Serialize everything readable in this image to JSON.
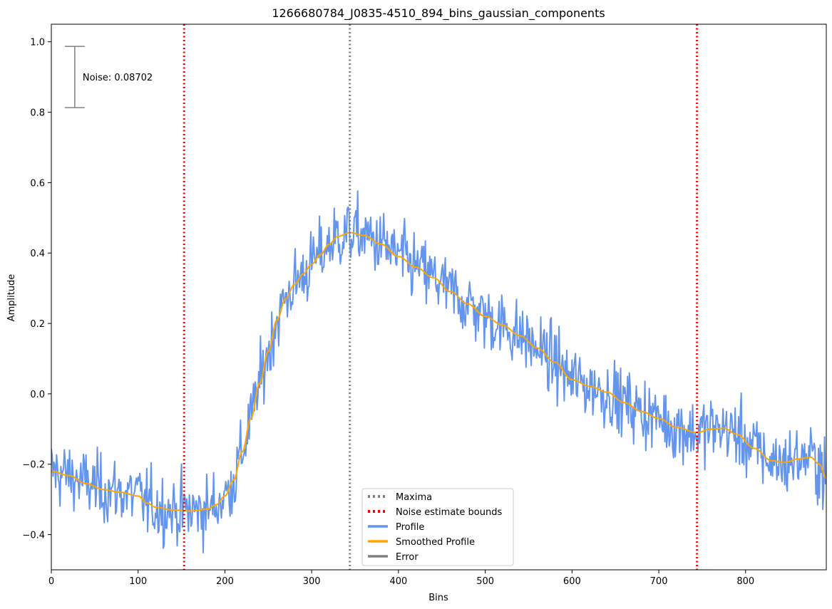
{
  "chart_data": {
    "type": "line",
    "title": "1266680784_J0835-4510_894_bins_gaussian_components",
    "xlabel": "Bins",
    "ylabel": "Amplitude",
    "xlim": [
      0,
      893
    ],
    "ylim": [
      -0.5,
      1.05
    ],
    "x_ticks": [
      0,
      100,
      200,
      300,
      400,
      500,
      600,
      700,
      800
    ],
    "y_ticks": [
      -0.4,
      -0.2,
      0.0,
      0.2,
      0.4,
      0.6,
      0.8,
      1.0
    ],
    "y_tick_labels": [
      "−0.4",
      "−0.2",
      "0.0",
      "0.2",
      "0.4",
      "0.6",
      "0.8",
      "1.0"
    ],
    "grid": false,
    "legend_position": "bottom-center",
    "colors": {
      "profile": "#6495ed",
      "smoothed": "#ffa500",
      "maxima": "#808080",
      "noise_bounds": "#ff0000",
      "error": "#808080"
    },
    "noise_label": "Noise: 0.08702",
    "error_bar": {
      "x": 27,
      "y_low": 0.813,
      "y_high": 0.987
    },
    "maxima": [
      344
    ],
    "noise_bounds": [
      153,
      744
    ],
    "profile_noise_sigma": 0.087,
    "smoothed_profile": [
      [
        0,
        -0.22
      ],
      [
        20,
        -0.232
      ],
      [
        40,
        -0.255
      ],
      [
        60,
        -0.272
      ],
      [
        80,
        -0.28
      ],
      [
        100,
        -0.29
      ],
      [
        110,
        -0.31
      ],
      [
        120,
        -0.322
      ],
      [
        140,
        -0.33
      ],
      [
        160,
        -0.333
      ],
      [
        180,
        -0.328
      ],
      [
        190,
        -0.315
      ],
      [
        200,
        -0.29
      ],
      [
        210,
        -0.245
      ],
      [
        220,
        -0.165
      ],
      [
        230,
        -0.07
      ],
      [
        240,
        0.03
      ],
      [
        250,
        0.12
      ],
      [
        260,
        0.21
      ],
      [
        270,
        0.27
      ],
      [
        280,
        0.31
      ],
      [
        290,
        0.34
      ],
      [
        300,
        0.368
      ],
      [
        310,
        0.395
      ],
      [
        320,
        0.425
      ],
      [
        330,
        0.447
      ],
      [
        344,
        0.458
      ],
      [
        360,
        0.45
      ],
      [
        380,
        0.425
      ],
      [
        400,
        0.39
      ],
      [
        420,
        0.36
      ],
      [
        440,
        0.33
      ],
      [
        460,
        0.29
      ],
      [
        480,
        0.255
      ],
      [
        500,
        0.22
      ],
      [
        520,
        0.195
      ],
      [
        540,
        0.165
      ],
      [
        560,
        0.13
      ],
      [
        580,
        0.09
      ],
      [
        600,
        0.04
      ],
      [
        620,
        0.022
      ],
      [
        640,
        0.005
      ],
      [
        660,
        -0.025
      ],
      [
        680,
        -0.05
      ],
      [
        700,
        -0.07
      ],
      [
        720,
        -0.095
      ],
      [
        744,
        -0.11
      ],
      [
        760,
        -0.1
      ],
      [
        775,
        -0.098
      ],
      [
        790,
        -0.115
      ],
      [
        810,
        -0.155
      ],
      [
        830,
        -0.19
      ],
      [
        845,
        -0.195
      ],
      [
        860,
        -0.185
      ],
      [
        875,
        -0.18
      ],
      [
        885,
        -0.2
      ],
      [
        893,
        -0.24
      ]
    ],
    "legend": [
      {
        "label": "Maxima",
        "style": "dotted",
        "color": "#808080"
      },
      {
        "label": "Noise estimate bounds",
        "style": "dotted",
        "color": "#ff0000"
      },
      {
        "label": "Profile",
        "style": "solid",
        "color": "#6495ed"
      },
      {
        "label": "Smoothed Profile",
        "style": "solid",
        "color": "#ffa500"
      },
      {
        "label": "Error",
        "style": "solid",
        "color": "#808080"
      }
    ]
  }
}
